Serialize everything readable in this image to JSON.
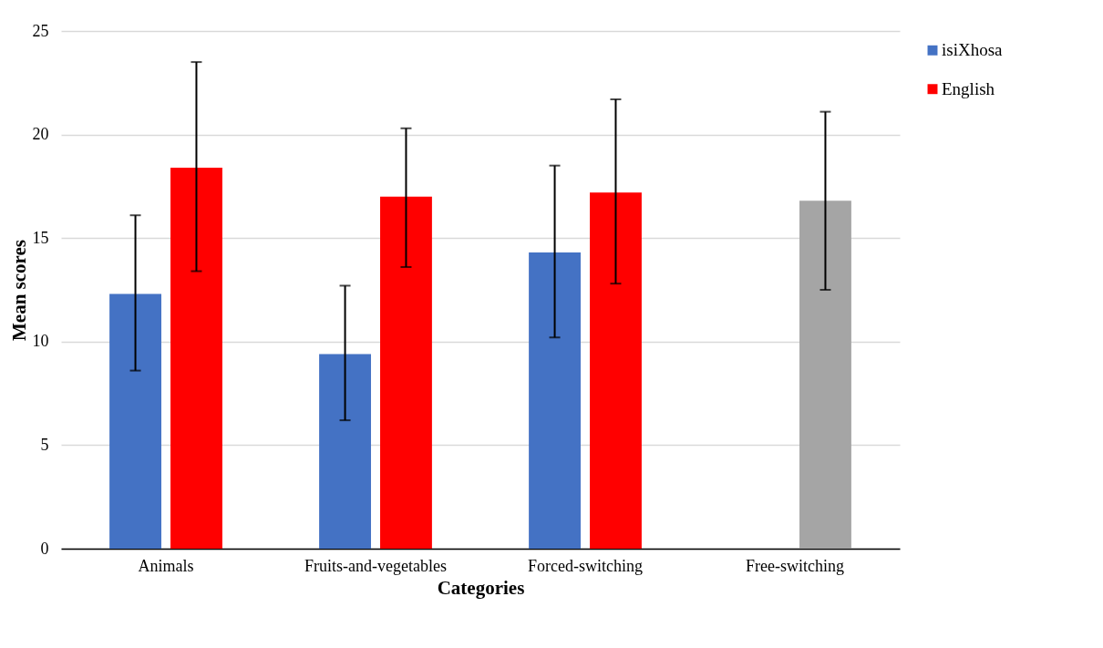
{
  "chart_data": {
    "type": "bar",
    "xlabel": "Categories",
    "ylabel": "Mean scores",
    "categories": [
      "Animals",
      "Fruits-and-vegetables",
      "Forced-switching",
      "Free-switching"
    ],
    "series": [
      {
        "name": "isiXhosa",
        "color": "#4472c4",
        "values": [
          12.3,
          9.4,
          14.3,
          null
        ],
        "errors": [
          [
            8.6,
            16.1
          ],
          [
            6.2,
            12.7
          ],
          [
            10.2,
            18.5
          ],
          null
        ]
      },
      {
        "name": "English",
        "color": "#ff0000",
        "colors": [
          "#ff0000",
          "#ff0000",
          "#ff0000",
          "#a5a5a5"
        ],
        "values": [
          18.4,
          17.0,
          17.2,
          16.8
        ],
        "errors": [
          [
            13.4,
            23.5
          ],
          [
            13.6,
            20.3
          ],
          [
            12.8,
            21.7
          ],
          [
            12.5,
            21.1
          ]
        ]
      }
    ],
    "ylim": [
      0,
      25
    ],
    "yticks": [
      0,
      5,
      10,
      15,
      20,
      25
    ],
    "grid": "y",
    "legend": "right"
  }
}
